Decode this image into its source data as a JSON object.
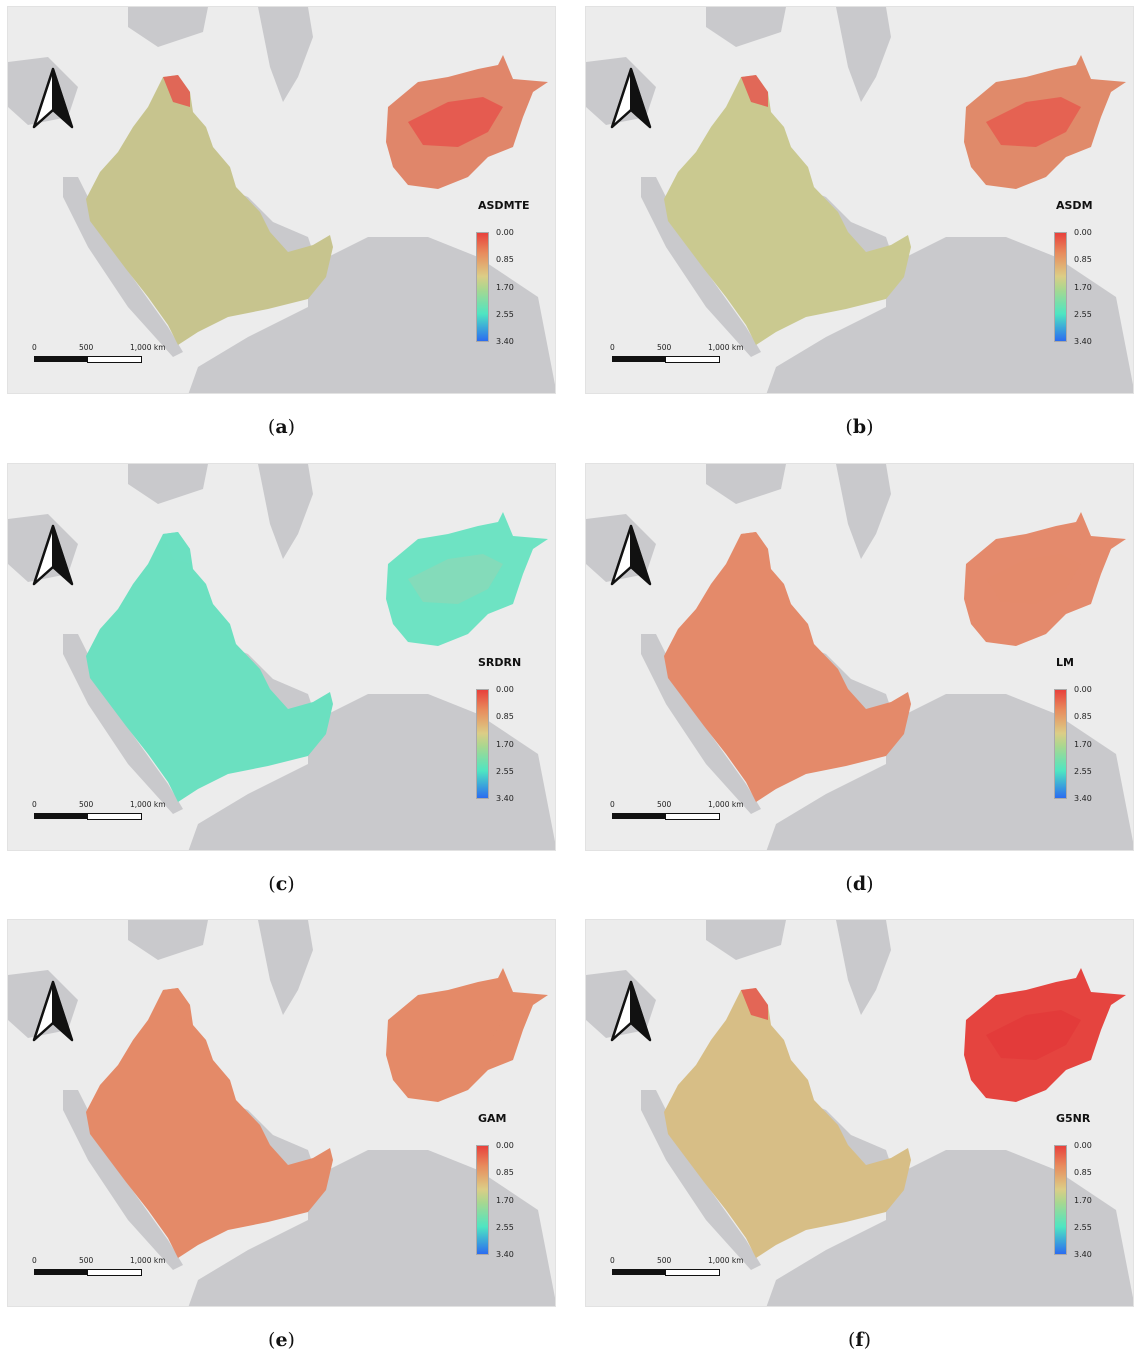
{
  "panels": [
    {
      "id": "a",
      "model": "ASDMTE",
      "caption_letter": "a",
      "arabia": "#c7c48e",
      "afghan": "#e0866a",
      "afghan_hot": "#e6504a"
    },
    {
      "id": "b",
      "model": "ASDM",
      "caption_letter": "b",
      "arabia": "#cac990",
      "afghan": "#e08a6a",
      "afghan_hot": "#e6584c"
    },
    {
      "id": "c",
      "model": "SRDRN",
      "caption_letter": "c",
      "arabia": "#6be0c0",
      "afghan": "#6ee3c3",
      "afghan_hot": "#8ad8b8"
    },
    {
      "id": "d",
      "model": "LM",
      "caption_letter": "d",
      "arabia": "#e48a6a",
      "afghan": "#e48a6c",
      "afghan_hot": "#e48a6c"
    },
    {
      "id": "e",
      "model": "GAM",
      "caption_letter": "e",
      "arabia": "#e48a68",
      "afghan": "#e48a68",
      "afghan_hot": "#e48a68"
    },
    {
      "id": "f",
      "model": "G5NR",
      "caption_letter": "f",
      "arabia": "#d7be86",
      "afghan": "#e5443f",
      "afghan_hot": "#e23a3a"
    }
  ],
  "legend": {
    "ticks": [
      "0.00",
      "0.85",
      "1.70",
      "2.55",
      "3.40"
    ]
  },
  "scalebar": {
    "labels": [
      "0",
      "500",
      "1,000 km"
    ]
  },
  "caption_parens": {
    "open": "(",
    "close": ")"
  }
}
